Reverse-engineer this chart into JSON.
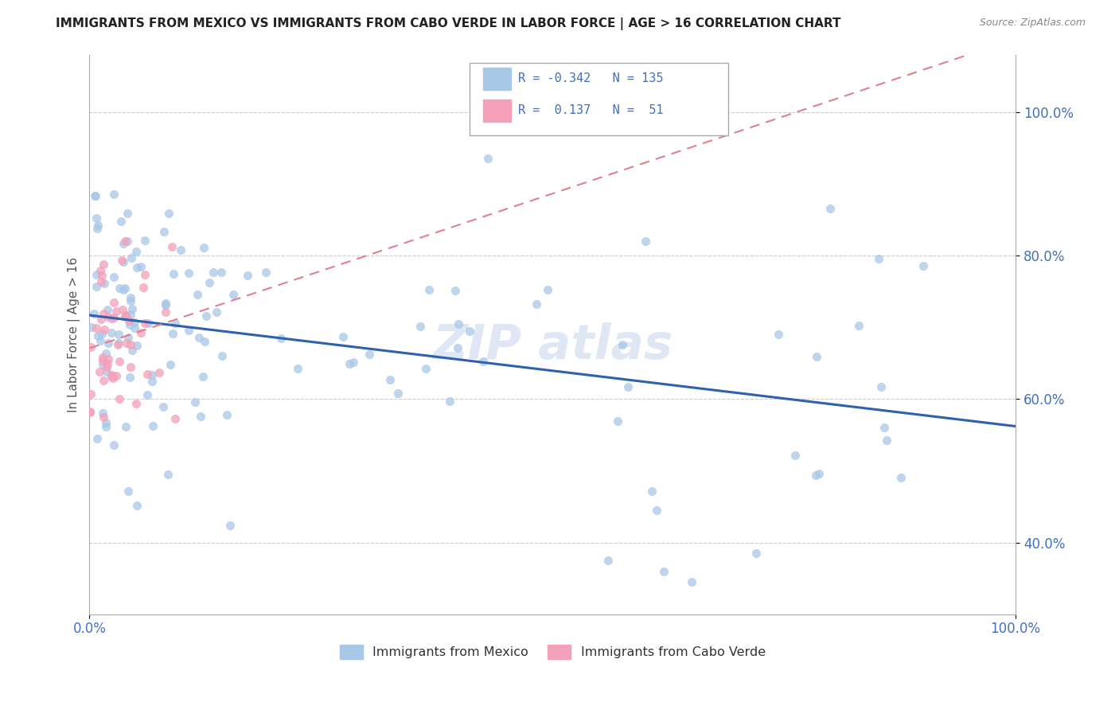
{
  "title": "IMMIGRANTS FROM MEXICO VS IMMIGRANTS FROM CABO VERDE IN LABOR FORCE | AGE > 16 CORRELATION CHART",
  "source": "Source: ZipAtlas.com",
  "ylabel": "In Labor Force | Age > 16",
  "color_mexico": "#a8c8e8",
  "color_cabo": "#f4a0b8",
  "color_mexico_line": "#3060b0",
  "color_cabo_line": "#e08090",
  "grid_color": "#cccccc",
  "background_color": "#ffffff",
  "xlim": [
    0.0,
    1.0
  ],
  "ylim": [
    0.3,
    1.08
  ],
  "mexico_R": -0.342,
  "cabo_R": 0.137,
  "seed": 123
}
